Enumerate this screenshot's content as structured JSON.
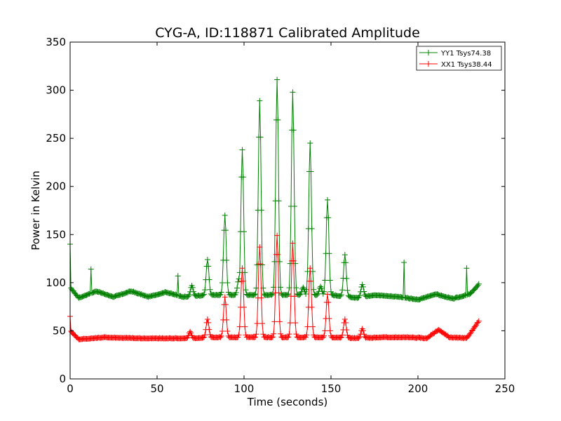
{
  "chart_data": {
    "type": "line",
    "title": "CYG-A, ID:118871 Calibrated Amplitude",
    "xlabel": "Time (seconds)",
    "ylabel": "Power in Kelvin",
    "xlim": [
      0,
      250
    ],
    "ylim": [
      0,
      350
    ],
    "xticks": [
      "0",
      "50",
      "100",
      "150",
      "200",
      "250"
    ],
    "yticks": [
      "0",
      "50",
      "100",
      "150",
      "200",
      "250",
      "300",
      "350"
    ],
    "xtick_values": [
      0,
      50,
      100,
      150,
      200,
      250
    ],
    "ytick_values": [
      0,
      50,
      100,
      150,
      200,
      250,
      300,
      350
    ],
    "grid": false,
    "legend_placement": "top-right",
    "marker": "+",
    "series": [
      {
        "name": "YY1 Tsys74.38",
        "color": "#008000",
        "x_range": [
          0,
          235
        ],
        "baseline": [
          [
            0,
            95
          ],
          [
            5,
            84
          ],
          [
            15,
            91
          ],
          [
            25,
            85
          ],
          [
            35,
            91
          ],
          [
            45,
            85
          ],
          [
            55,
            90
          ],
          [
            65,
            85
          ],
          [
            80,
            87
          ],
          [
            100,
            87
          ],
          [
            150,
            87
          ],
          [
            165,
            84
          ],
          [
            175,
            87
          ],
          [
            190,
            85
          ],
          [
            200,
            82
          ],
          [
            210,
            88
          ],
          [
            220,
            83
          ],
          [
            230,
            88
          ],
          [
            235,
            98
          ]
        ],
        "peaks": [
          [
            89,
            170
          ],
          [
            99,
            238
          ],
          [
            109,
            289
          ],
          [
            119,
            311
          ],
          [
            128,
            298
          ],
          [
            138,
            245
          ],
          [
            148,
            186
          ],
          [
            158,
            129
          ],
          [
            79,
            124
          ],
          [
            168,
            98
          ],
          [
            97,
            104
          ],
          [
            144,
            96
          ],
          [
            134,
            95
          ],
          [
            70,
            97
          ]
        ],
        "spikes": [
          [
            0,
            140
          ],
          [
            12,
            114
          ],
          [
            62,
            107
          ],
          [
            192,
            121
          ],
          [
            228,
            115
          ]
        ]
      },
      {
        "name": "XX1 Tsys38.44",
        "color": "#ff0000",
        "x_range": [
          0,
          235
        ],
        "baseline": [
          [
            0,
            50
          ],
          [
            5,
            41
          ],
          [
            20,
            43
          ],
          [
            40,
            42
          ],
          [
            60,
            42
          ],
          [
            70,
            42
          ],
          [
            80,
            43
          ],
          [
            100,
            43
          ],
          [
            150,
            43
          ],
          [
            165,
            42
          ],
          [
            180,
            43
          ],
          [
            195,
            43
          ],
          [
            205,
            42
          ],
          [
            212,
            51
          ],
          [
            218,
            43
          ],
          [
            228,
            42
          ],
          [
            232,
            52
          ],
          [
            235,
            60
          ]
        ],
        "peaks": [
          [
            79,
            62
          ],
          [
            89,
            85
          ],
          [
            99,
            115
          ],
          [
            109,
            137
          ],
          [
            119,
            149
          ],
          [
            128,
            141
          ],
          [
            138,
            115
          ],
          [
            148,
            88
          ],
          [
            158,
            62
          ],
          [
            168,
            52
          ],
          [
            69,
            49
          ]
        ],
        "spikes": [
          [
            0,
            65
          ]
        ]
      }
    ]
  }
}
